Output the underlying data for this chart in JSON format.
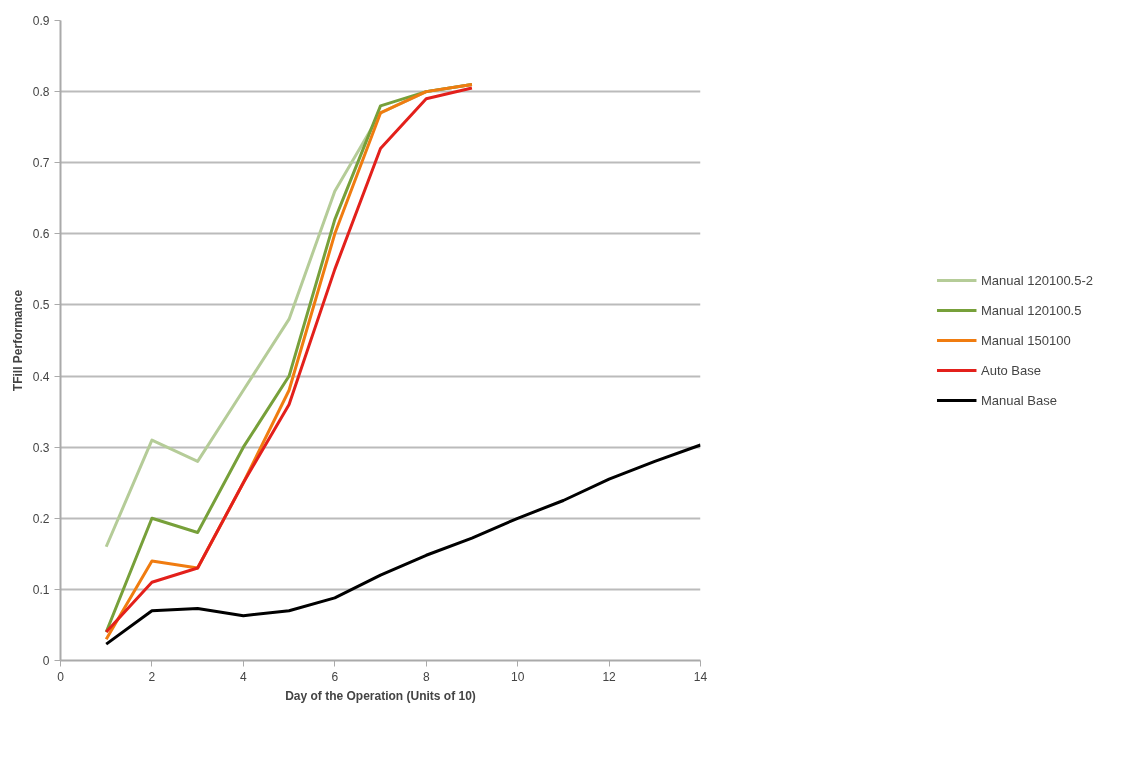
{
  "chart_data": {
    "type": "line",
    "xlabel": "Day of the Operation (Units of 10)",
    "ylabel": "TFill Performance",
    "xlim": [
      0,
      14
    ],
    "xticks": [
      0,
      2,
      4,
      6,
      8,
      10,
      12,
      14
    ],
    "ylim": [
      0,
      0.9
    ],
    "yticks": [
      0,
      0.1,
      0.2,
      0.3,
      0.4,
      0.5,
      0.6,
      0.7,
      0.8,
      0.9
    ],
    "grid": "y",
    "legend": "right",
    "marker": "none",
    "line_style": "solid",
    "x": [
      1,
      2,
      3,
      4,
      5,
      6,
      7,
      8,
      9
    ],
    "series": [
      {
        "name": "Manual 120100.5-2",
        "color": "#b5cc98",
        "values": [
          0.16,
          0.31,
          0.28,
          0.38,
          0.48,
          0.66,
          0.77,
          0.8,
          0.81
        ]
      },
      {
        "name": "Manual 120100.5",
        "color": "#77a03a",
        "values": [
          0.04,
          0.2,
          0.18,
          0.3,
          0.4,
          0.62,
          0.78,
          0.8,
          0.81
        ]
      },
      {
        "name": "Manual 150100",
        "color": "#f07c10",
        "values": [
          0.03,
          0.14,
          0.13,
          0.25,
          0.38,
          0.6,
          0.77,
          0.8,
          0.81
        ]
      },
      {
        "name": "Auto Base",
        "color": "#e3201b",
        "values": [
          0.04,
          0.11,
          0.13,
          0.25,
          0.36,
          0.55,
          0.72,
          0.79,
          0.805
        ]
      },
      {
        "name": "Manual Base",
        "color": "#000000",
        "x": [
          1,
          2,
          3,
          4,
          5,
          6,
          7,
          8,
          9,
          10,
          11,
          12,
          13,
          14
        ],
        "values": [
          0.023,
          0.07,
          0.073,
          0.063,
          0.07,
          0.088,
          0.12,
          0.148,
          0.172,
          0.2,
          0.225,
          0.255,
          0.28,
          0.303
        ]
      }
    ]
  }
}
